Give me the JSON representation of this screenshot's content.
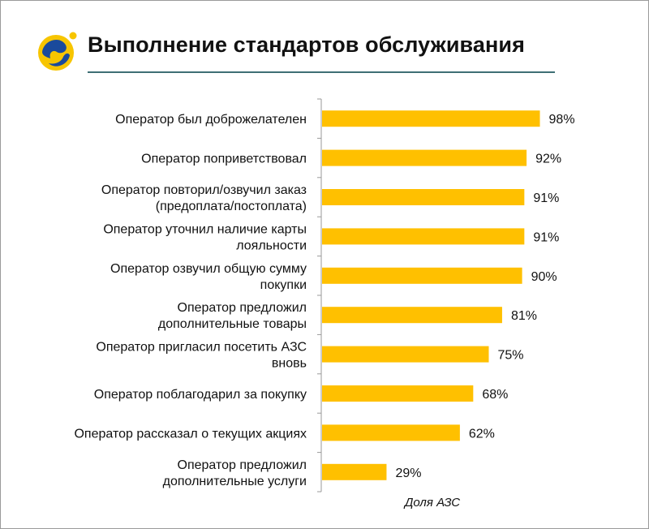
{
  "header": {
    "title": "Выполнение стандартов обслуживания"
  },
  "colors": {
    "bar": "#FFC000",
    "axis": "#9a9a9a",
    "title_rule": "#3e6f75",
    "logo_yellow": "#F7C500",
    "logo_blue": "#1a4a9c"
  },
  "icons": {
    "logo": "company-logo-icon"
  },
  "chart_data": {
    "type": "bar",
    "orientation": "horizontal",
    "categories": [
      [
        "Оператор был доброжелателен"
      ],
      [
        "Оператор поприветствовал"
      ],
      [
        "Оператор повторил/озвучил заказ",
        "(предоплата/постоплата)"
      ],
      [
        "Оператор уточнил наличие карты",
        "лояльности"
      ],
      [
        "Оператор озвучил общую сумму",
        "покупки"
      ],
      [
        "Оператор предложил",
        "дополнительные товары"
      ],
      [
        "Оператор пригласил посетить АЗС",
        "вновь"
      ],
      [
        "Оператор поблагодарил за покупку"
      ],
      [
        "Оператор рассказал о текущих акциях"
      ],
      [
        "Оператор предложил",
        "дополнительные услуги"
      ]
    ],
    "values": [
      98,
      92,
      91,
      91,
      90,
      81,
      75,
      68,
      62,
      29
    ],
    "value_labels": [
      "98%",
      "92%",
      "91%",
      "91%",
      "90%",
      "81%",
      "75%",
      "68%",
      "62%",
      "29%"
    ],
    "xlabel": "Доля АЗС",
    "xlim": [
      0,
      100
    ],
    "grid": false,
    "legend": "none"
  }
}
